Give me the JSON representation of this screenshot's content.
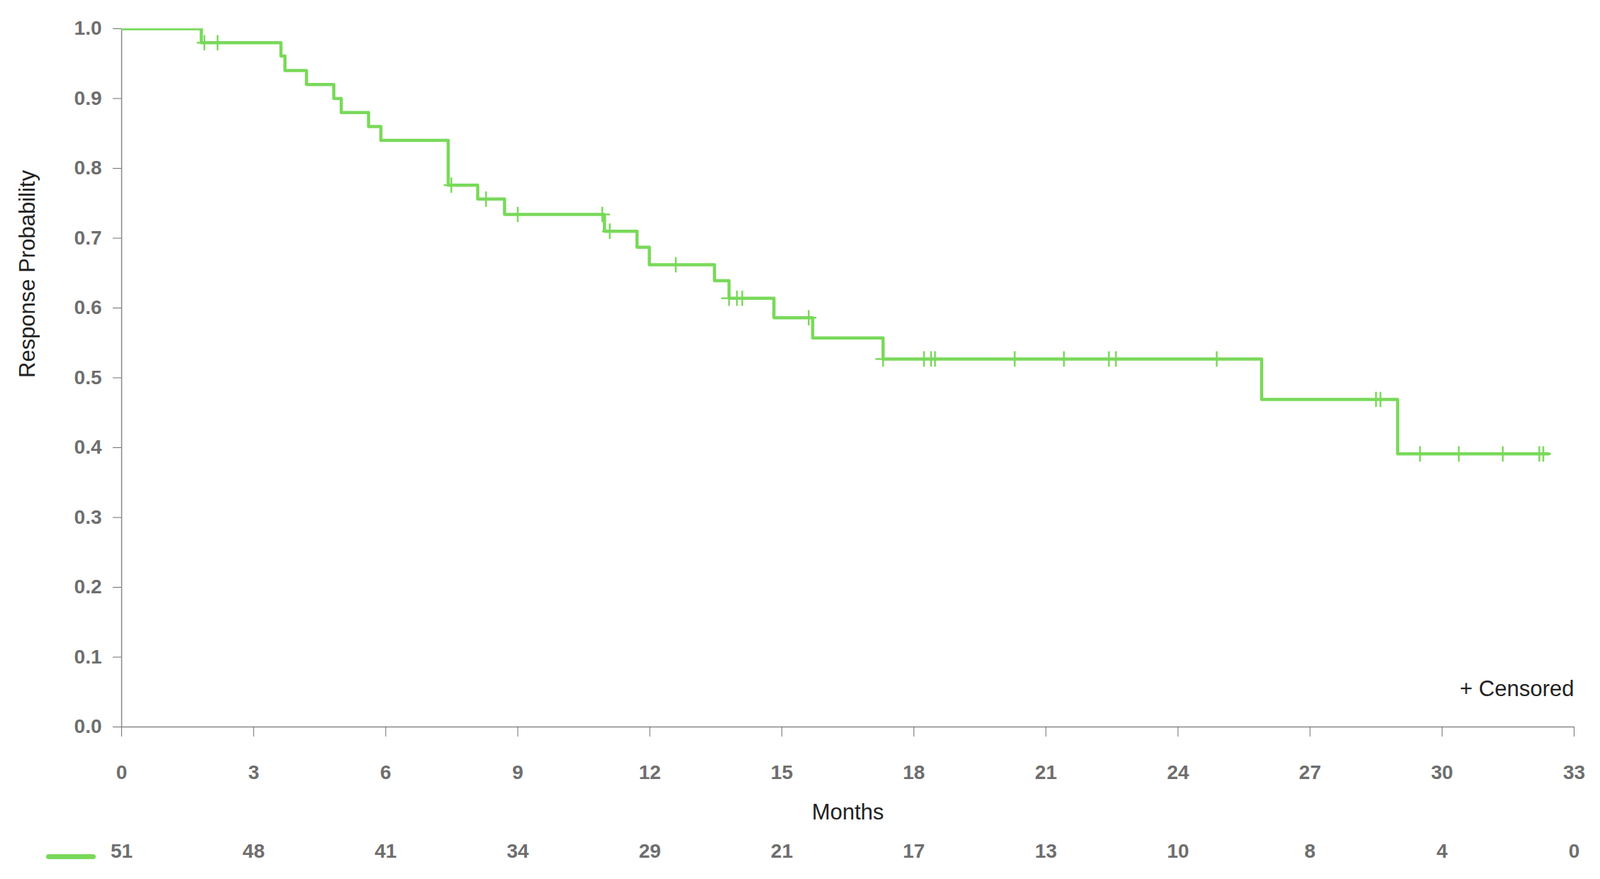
{
  "chart_data": {
    "type": "step",
    "x_label": "Months",
    "y_label": "Response Probability",
    "xlim": [
      0,
      33
    ],
    "xticks": [
      0,
      3,
      6,
      9,
      12,
      15,
      18,
      21,
      24,
      27,
      30,
      33
    ],
    "ylim": [
      0,
      1
    ],
    "yticks": [
      {
        "value": 0,
        "label": "0.0"
      },
      0.1,
      0.2,
      0.3,
      0.4,
      0.5,
      0.6,
      0.7,
      0.8,
      0.9,
      {
        "value": 1,
        "label": "1.0"
      }
    ],
    "grid": false,
    "series": [
      {
        "color": "#79d95a",
        "x": [
          0,
          1.81,
          3.62,
          3.71,
          4.2,
          4.82,
          4.99,
          5.61,
          5.89,
          7.42,
          8.09,
          8.7,
          10.97,
          11.71,
          11.99,
          13.47,
          13.8,
          14.82,
          15.7,
          17.3,
          25.9,
          28.99,
          32.42
        ],
        "values": [
          1.0,
          0.98,
          0.961,
          0.94,
          0.92,
          0.9,
          0.88,
          0.86,
          0.84,
          0.776,
          0.756,
          0.734,
          0.71,
          0.687,
          0.662,
          0.639,
          0.614,
          0.586,
          0.557,
          0.527,
          0.469,
          0.391,
          0.391
        ]
      }
    ],
    "censored": {
      "marker": "plus",
      "x": [
        1.88,
        2.18,
        7.49,
        8.28,
        9.0,
        10.92,
        11.09,
        12.59,
        13.8,
        13.98,
        14.1,
        15.61,
        17.3,
        18.23,
        18.39,
        18.48,
        20.29,
        21.41,
        22.43,
        22.59,
        24.88,
        28.5,
        28.6,
        29.5,
        30.38,
        31.38,
        32.21,
        32.3
      ],
      "values": [
        0.98,
        0.98,
        0.776,
        0.756,
        0.734,
        0.734,
        0.71,
        0.662,
        0.614,
        0.614,
        0.614,
        0.586,
        0.527,
        0.527,
        0.527,
        0.527,
        0.527,
        0.527,
        0.527,
        0.527,
        0.527,
        0.469,
        0.469,
        0.391,
        0.391,
        0.391,
        0.391,
        0.391
      ]
    },
    "annotation": "+ Censored",
    "at_risk": {
      "x": [
        0,
        3,
        6,
        9,
        12,
        15,
        18,
        21,
        24,
        27,
        30,
        33
      ],
      "values": [
        51,
        48,
        41,
        34,
        29,
        21,
        17,
        13,
        10,
        8,
        4,
        0
      ]
    }
  }
}
